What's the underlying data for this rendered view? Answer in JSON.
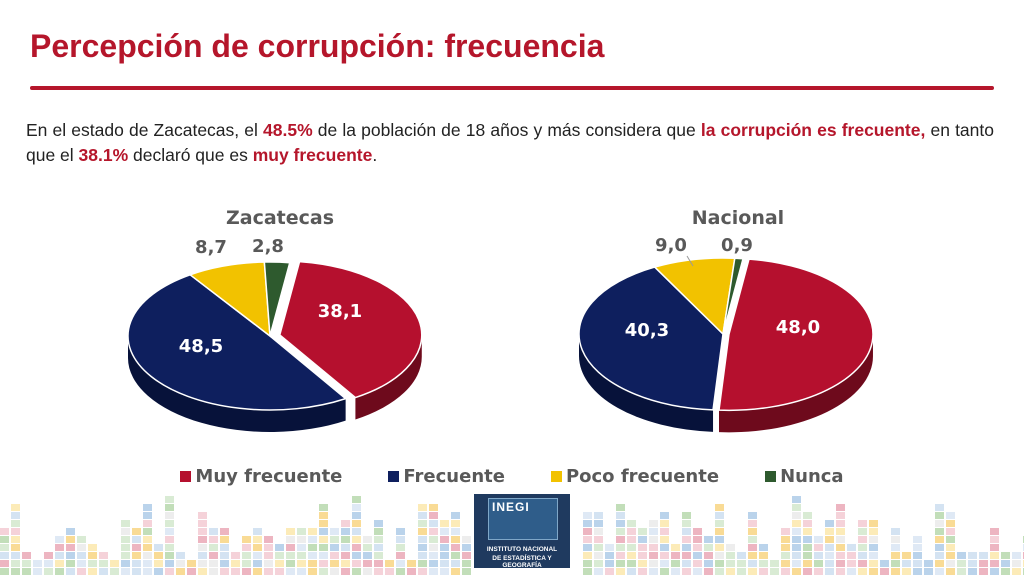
{
  "header": {
    "title": "Percepción de corrupción: frecuencia"
  },
  "intro": {
    "p1": "En el estado de Zacatecas, el ",
    "p2": "48.5%",
    "p3": " de la población de 18 años y más considera que ",
    "p4": "la corrupción es frecuente,",
    "p5": " en tanto que el ",
    "p6": "38.1%",
    "p7": " declaró que es ",
    "p8": "muy frecuente",
    "p9": "."
  },
  "chart_data": [
    {
      "type": "pie",
      "title": "Zacatecas",
      "categories": [
        "Muy frecuente",
        "Frecuente",
        "Poco frecuente",
        "Nunca"
      ],
      "values": [
        38.1,
        48.5,
        8.7,
        2.8
      ],
      "labels": [
        "38,1",
        "48,5",
        "8,7",
        "2,8"
      ],
      "legend": "bottom"
    },
    {
      "type": "pie",
      "title": "Nacional",
      "categories": [
        "Muy frecuente",
        "Frecuente",
        "Poco frecuente",
        "Nunca"
      ],
      "values": [
        48.0,
        40.3,
        9.0,
        0.9
      ],
      "labels": [
        "48,0",
        "40,3",
        "9,0",
        "0,9"
      ],
      "legend": "bottom"
    }
  ],
  "legend": {
    "items": [
      {
        "label": "Muy frecuente",
        "color": "#b5102e"
      },
      {
        "label": "Frecuente",
        "color": "#0e1f5e"
      },
      {
        "label": "Poco frecuente",
        "color": "#f2c200"
      },
      {
        "label": "Nunca",
        "color": "#2e5a2e"
      }
    ]
  },
  "colors": {
    "accent": "#b5162b",
    "muy": "#b5102e",
    "frecuente": "#0e1f5e",
    "poco": "#f2c200",
    "nunca": "#2e5a2e"
  },
  "logo": {
    "mark": "INEGI",
    "line1": "INSTITUTO NACIONAL",
    "line2": "DE ESTADÍSTICA Y GEOGRAFÍA"
  }
}
